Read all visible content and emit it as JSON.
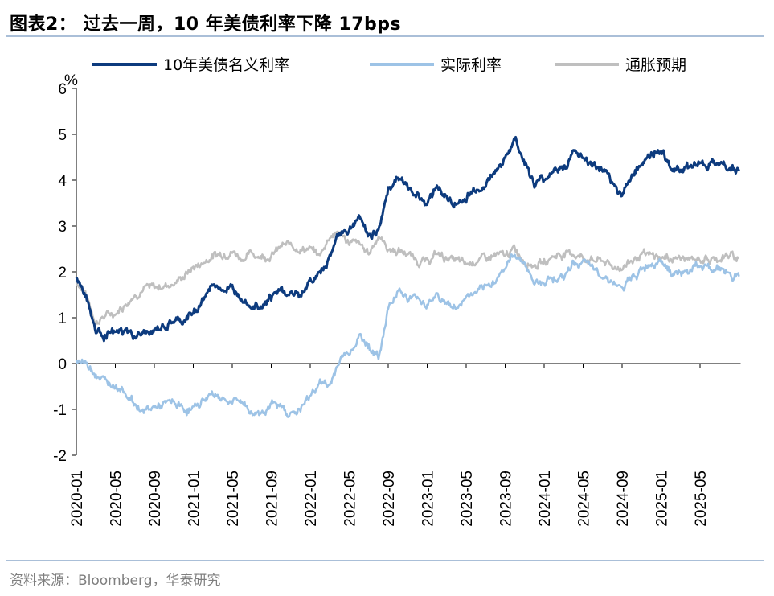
{
  "header": {
    "title": "图表2： 过去一周，10 年美债利率下降 17bps"
  },
  "footer": {
    "source": "资料来源：Bloomberg，华泰研究"
  },
  "colors": {
    "nominal": "#0d3b7e",
    "real": "#9dc3e6",
    "inflation": "#bfbfbf",
    "rule": "#8eaacc"
  },
  "chart_data": {
    "type": "line",
    "title": "过去一周，10 年美债利率下降 17bps",
    "ylabel": "%",
    "ylim": [
      -2,
      6
    ],
    "yticks": [
      "6",
      "5",
      "4",
      "3",
      "2",
      "1",
      "0",
      "-1",
      "-2"
    ],
    "xticks": [
      "2020-01",
      "2020-05",
      "2020-09",
      "2021-01",
      "2021-05",
      "2021-09",
      "2022-01",
      "2022-05",
      "2022-09",
      "2023-01",
      "2023-05",
      "2023-09",
      "2024-01",
      "2024-05",
      "2024-09",
      "2025-01",
      "2025-05"
    ],
    "x_start": "2020-01",
    "x_frequency": "monthly",
    "legend_position": "top",
    "series": [
      {
        "name": "10年美债名义利率",
        "color_key": "nominal",
        "values": [
          1.9,
          1.5,
          0.7,
          0.65,
          0.65,
          0.7,
          0.6,
          0.65,
          0.7,
          0.8,
          0.9,
          0.92,
          1.1,
          1.4,
          1.7,
          1.65,
          1.6,
          1.5,
          1.3,
          1.3,
          1.45,
          1.6,
          1.5,
          1.5,
          1.8,
          1.95,
          2.3,
          2.9,
          2.9,
          3.2,
          2.8,
          2.9,
          3.8,
          4.1,
          3.8,
          3.7,
          3.5,
          3.9,
          3.6,
          3.45,
          3.6,
          3.8,
          3.9,
          4.2,
          4.5,
          4.9,
          4.4,
          3.9,
          4.0,
          4.25,
          4.25,
          4.6,
          4.5,
          4.3,
          4.2,
          3.9,
          3.7,
          4.1,
          4.4,
          4.55,
          4.6,
          4.3,
          4.25,
          4.3,
          4.45,
          4.3,
          4.4,
          4.3,
          4.2
        ]
      },
      {
        "name": "实际利率",
        "color_key": "real",
        "values": [
          0.1,
          0.0,
          -0.2,
          -0.4,
          -0.45,
          -0.6,
          -0.9,
          -1.05,
          -0.95,
          -0.9,
          -0.85,
          -1.0,
          -1.0,
          -0.8,
          -0.65,
          -0.75,
          -0.85,
          -0.8,
          -1.1,
          -1.05,
          -0.9,
          -0.95,
          -1.1,
          -1.0,
          -0.7,
          -0.4,
          -0.5,
          0.1,
          0.25,
          0.6,
          0.4,
          0.1,
          1.2,
          1.65,
          1.4,
          1.45,
          1.3,
          1.5,
          1.3,
          1.2,
          1.45,
          1.55,
          1.6,
          1.85,
          2.1,
          2.4,
          2.2,
          1.75,
          1.8,
          1.9,
          1.85,
          2.2,
          2.2,
          2.05,
          1.95,
          1.8,
          1.6,
          1.85,
          2.05,
          2.2,
          2.3,
          2.0,
          1.95,
          2.05,
          2.15,
          2.05,
          2.1,
          1.95,
          1.9
        ]
      },
      {
        "name": "通胀预期",
        "color_key": "inflation",
        "values": [
          1.8,
          1.5,
          0.9,
          1.05,
          1.1,
          1.3,
          1.5,
          1.65,
          1.65,
          1.7,
          1.75,
          1.9,
          2.1,
          2.2,
          2.35,
          2.4,
          2.45,
          2.3,
          2.4,
          2.35,
          2.35,
          2.55,
          2.6,
          2.5,
          2.5,
          2.35,
          2.8,
          2.85,
          2.65,
          2.6,
          2.4,
          2.8,
          2.5,
          2.45,
          2.4,
          2.25,
          2.2,
          2.4,
          2.3,
          2.25,
          2.15,
          2.25,
          2.3,
          2.35,
          2.35,
          2.5,
          2.25,
          2.15,
          2.2,
          2.35,
          2.4,
          2.4,
          2.3,
          2.25,
          2.25,
          2.1,
          2.1,
          2.25,
          2.35,
          2.35,
          2.3,
          2.3,
          2.3,
          2.25,
          2.3,
          2.25,
          2.3,
          2.35,
          2.3
        ]
      }
    ]
  }
}
